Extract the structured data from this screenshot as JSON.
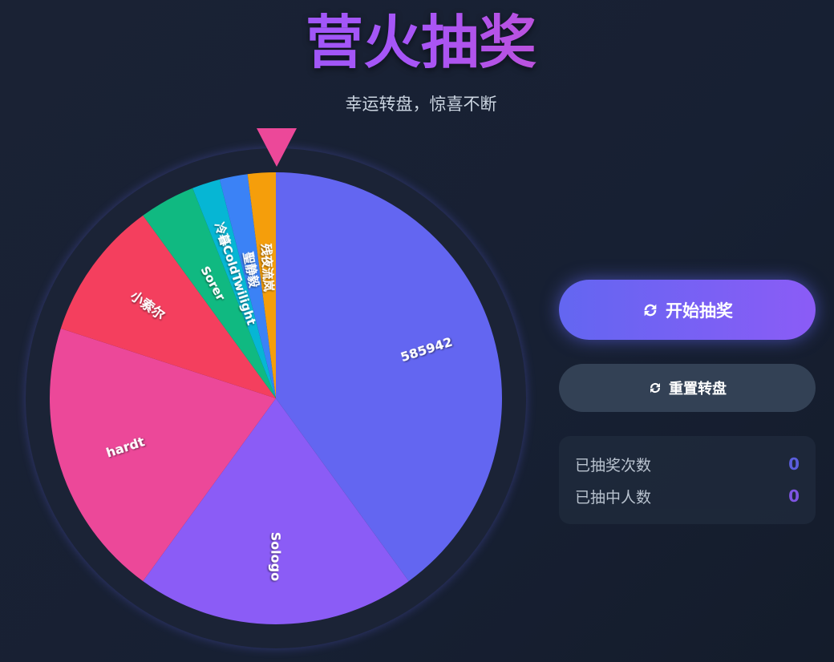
{
  "header": {
    "title": "营火抽奖",
    "subtitle": "幸运转盘，惊喜不断"
  },
  "wheel": {
    "pointer_color": "#ec4899",
    "slices": [
      {
        "label": "585942",
        "weight": 40,
        "color": "#6366f1"
      },
      {
        "label": "Sologo",
        "weight": 20,
        "color": "#8b5cf6"
      },
      {
        "label": "hardt",
        "weight": 20,
        "color": "#ec4899"
      },
      {
        "label": "小索尔",
        "weight": 10,
        "color": "#f43f5e"
      },
      {
        "label": "Sorer",
        "weight": 4,
        "color": "#10b981"
      },
      {
        "label": "冷暮ColdTwilight",
        "weight": 2,
        "color": "#06b6d4"
      },
      {
        "label": "聖静毅",
        "weight": 2,
        "color": "#3b82f6"
      },
      {
        "label": "残夜流岚",
        "weight": 2,
        "color": "#f59e0b"
      }
    ]
  },
  "controls": {
    "start_label": "开始抽奖",
    "start_icon": "sync-icon",
    "reset_label": "重置转盘",
    "reset_icon": "refresh-icon"
  },
  "stats": [
    {
      "label": "已抽奖次数",
      "value": "0",
      "color": "#6366f1"
    },
    {
      "label": "已抽中人数",
      "value": "0",
      "color": "#8b5cf6"
    }
  ]
}
